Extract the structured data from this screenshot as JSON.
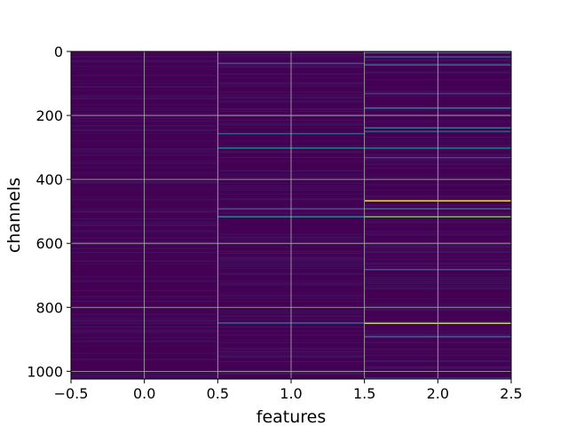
{
  "chart_data": {
    "type": "heatmap",
    "title": "",
    "xlabel": "features",
    "ylabel": "channels",
    "xlim": [
      -0.5,
      2.5
    ],
    "ylim": [
      1024,
      0
    ],
    "y_inverted": true,
    "grid": true,
    "colormap": "viridis",
    "background_color": "#440154",
    "x_ticks": [
      -0.5,
      0.0,
      0.5,
      1.0,
      1.5,
      2.0,
      2.5
    ],
    "x_tick_labels": [
      "−0.5",
      "0.0",
      "0.5",
      "1.0",
      "1.5",
      "2.0",
      "2.5"
    ],
    "y_ticks": [
      0,
      200,
      400,
      600,
      800,
      1000
    ],
    "y_tick_labels": [
      "0",
      "200",
      "400",
      "600",
      "800",
      "1000"
    ],
    "n_channels": 1024,
    "features": [
      0,
      1,
      2
    ],
    "highlighted_cells": [
      {
        "feature": 1,
        "channel": 35,
        "value": 0.25
      },
      {
        "feature": 1,
        "channel": 255,
        "value": 0.3
      },
      {
        "feature": 1,
        "channel": 300,
        "value": 0.45
      },
      {
        "feature": 1,
        "channel": 490,
        "value": 0.3
      },
      {
        "feature": 1,
        "channel": 515,
        "value": 0.45
      },
      {
        "feature": 1,
        "channel": 847,
        "value": 0.35
      },
      {
        "feature": 2,
        "channel": 2,
        "value": 0.35
      },
      {
        "feature": 2,
        "channel": 15,
        "value": 0.3
      },
      {
        "feature": 2,
        "channel": 40,
        "value": 0.4
      },
      {
        "feature": 2,
        "channel": 130,
        "value": 0.2
      },
      {
        "feature": 2,
        "channel": 175,
        "value": 0.45
      },
      {
        "feature": 2,
        "channel": 237,
        "value": 0.45
      },
      {
        "feature": 2,
        "channel": 248,
        "value": 0.3
      },
      {
        "feature": 2,
        "channel": 300,
        "value": 0.4
      },
      {
        "feature": 2,
        "channel": 330,
        "value": 0.25
      },
      {
        "feature": 2,
        "channel": 465,
        "value": 1.0
      },
      {
        "feature": 2,
        "channel": 490,
        "value": 0.4
      },
      {
        "feature": 2,
        "channel": 515,
        "value": 0.8
      },
      {
        "feature": 2,
        "channel": 680,
        "value": 0.3
      },
      {
        "feature": 2,
        "channel": 848,
        "value": 0.95
      },
      {
        "feature": 2,
        "channel": 890,
        "value": 0.35
      },
      {
        "feature": 2,
        "channel": 1020,
        "value": 0.25
      }
    ]
  }
}
